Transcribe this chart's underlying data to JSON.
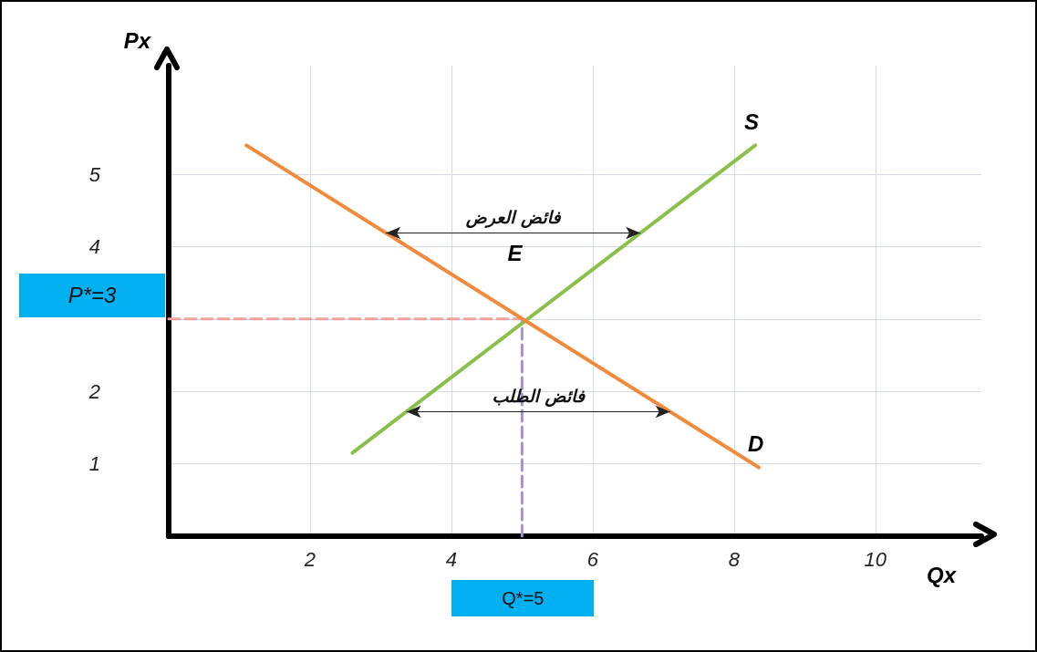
{
  "chart_data": {
    "type": "line",
    "xlabel": "Qx",
    "ylabel": "Px",
    "xlim": [
      0,
      11.5
    ],
    "ylim": [
      0,
      6.5
    ],
    "xticks": [
      2,
      4,
      6,
      8,
      10
    ],
    "yticks": [
      1,
      2,
      {
        "value": 3,
        "label": null
      },
      4,
      5
    ],
    "grid": true,
    "marker": "none",
    "series": [
      {
        "name": "S",
        "color": "#8cbf4a",
        "x": [
          2.6,
          8.3
        ],
        "values": [
          1.15,
          5.4
        ]
      },
      {
        "name": "D",
        "color": "#f28a3c",
        "x": [
          1.1,
          8.35
        ],
        "values": [
          5.4,
          0.95
        ]
      },
      {
        "color": "#f4a0a0",
        "x": [
          0,
          5
        ],
        "values": [
          3,
          3
        ],
        "line_style": "dashed"
      },
      {
        "color": "#a58fe0",
        "x": [
          5,
          5
        ],
        "values": [
          0,
          3
        ],
        "line_style": "dashed"
      }
    ],
    "annotations": [
      {
        "text": "E",
        "x": 5,
        "y": 3
      },
      "فائض العرض",
      "فائض الطلب",
      "P*=3",
      "Q*=5"
    ]
  }
}
